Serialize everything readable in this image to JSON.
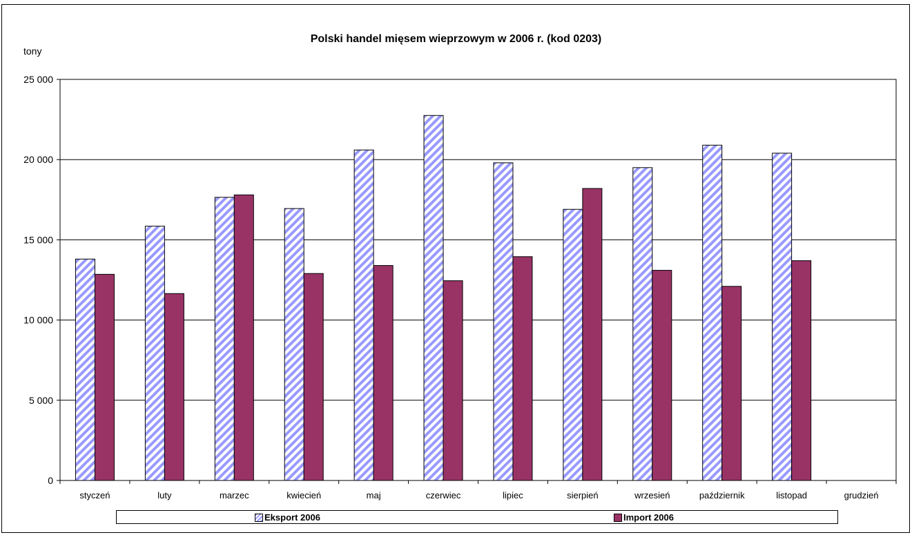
{
  "chart_data": {
    "type": "bar",
    "title": "Polski handel mięsem wieprzowym w 2006 r. (kod 0203)",
    "ylabel": "tony",
    "xlabel": "",
    "ylim": [
      0,
      25000
    ],
    "yticks": [
      0,
      5000,
      10000,
      15000,
      20000,
      25000
    ],
    "ytick_labels": [
      "0",
      "5 000",
      "10 000",
      "15 000",
      "20 000",
      "25 000"
    ],
    "grid": true,
    "legend_position": "bottom",
    "categories": [
      "styczeń",
      "luty",
      "marzec",
      "kwiecień",
      "maj",
      "czerwiec",
      "lipiec",
      "sierpień",
      "wrzesień",
      "październik",
      "listopad",
      "grudzień"
    ],
    "series": [
      {
        "name": "Eksport 2006",
        "color": "#9999ff",
        "pattern": "diagonal-stripes",
        "values": [
          13800,
          15850,
          17650,
          16950,
          20600,
          22750,
          19800,
          16900,
          19500,
          20900,
          20400,
          null
        ]
      },
      {
        "name": "Import 2006",
        "color": "#993366",
        "pattern": "solid",
        "values": [
          12850,
          11650,
          17800,
          12900,
          13400,
          12450,
          13950,
          18200,
          13100,
          12100,
          13700,
          null
        ]
      }
    ]
  }
}
